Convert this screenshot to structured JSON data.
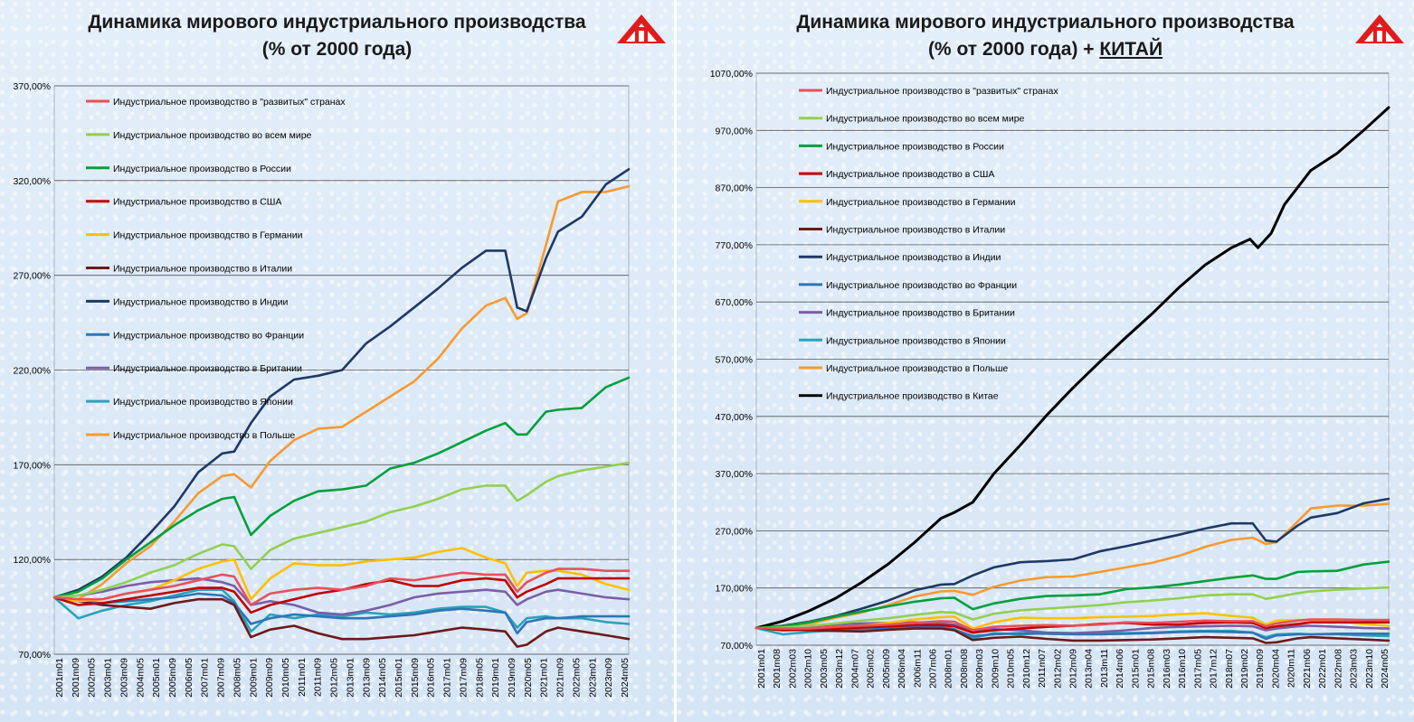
{
  "left": {
    "title_line1": "Динамика мирового индустриального производства",
    "title_line2": "(% от 2000 года)"
  },
  "right": {
    "title_line1": "Динамика мирового индустриального производства",
    "title_line2a": "(% от 2000 года) + ",
    "title_line2b": "КИТАЙ"
  },
  "colors": {
    "developed": "#e8505b",
    "world": "#92d050",
    "russia": "#00a03c",
    "usa": "#c00000",
    "germany": "#ffc000",
    "italy": "#6b1a1a",
    "india": "#1f3864",
    "france": "#2e75b6",
    "britain": "#7b5ea7",
    "japan": "#2aa3b8",
    "poland": "#f79a2e",
    "china": "#000000",
    "logo": "#e11b1b"
  },
  "chart_data": [
    {
      "type": "line",
      "title": "Динамика мирового индустриального производства (% от 2000 года)",
      "ylim": [
        70,
        370
      ],
      "yticks": [
        "70,00%",
        "120,00%",
        "170,00%",
        "220,00%",
        "270,00%",
        "320,00%",
        "370,00%"
      ],
      "ytick_values": [
        70,
        120,
        170,
        220,
        270,
        320,
        370
      ],
      "x_start": 2001.0,
      "x_end": 2024.95,
      "xticks": [
        "2001m01",
        "2001m09",
        "2002m05",
        "2003m01",
        "2003m09",
        "2004m05",
        "2005m01",
        "2005m09",
        "2006m05",
        "2007m01",
        "2007m09",
        "2008m05",
        "2009m01",
        "2009m09",
        "2010m05",
        "2011m01",
        "2011m09",
        "2012m05",
        "2013m01",
        "2013m09",
        "2014m05",
        "2015m01",
        "2015m09",
        "2016m05",
        "2017m01",
        "2017m09",
        "2018m05",
        "2019m01",
        "2019m09",
        "2020m05",
        "2021m01",
        "2021m09",
        "2022m05",
        "2023m01",
        "2023m09",
        "2024m05"
      ],
      "grid": true,
      "legend_position": "upper-left",
      "series": [
        {
          "key": "developed",
          "name": "Индустриальное производство в \"развитых\" странах",
          "x": [
            2001,
            2002,
            2003,
            2004,
            2005,
            2006,
            2007,
            2008,
            2008.5,
            2009.2,
            2010,
            2011,
            2012,
            2013,
            2014,
            2015,
            2016,
            2017,
            2018,
            2019,
            2019.8,
            2020.3,
            2020.7,
            2021.5,
            2022,
            2023,
            2024,
            2024.95
          ],
          "y": [
            100,
            99,
            99,
            102,
            104,
            106,
            109,
            112,
            111,
            96,
            102,
            104,
            105,
            104,
            106,
            110,
            109,
            111,
            113,
            112,
            112,
            103,
            108,
            113,
            115,
            115,
            114,
            114
          ]
        },
        {
          "key": "world",
          "name": "Индустриальное производство во всем мире",
          "x": [
            2001,
            2002,
            2003,
            2004,
            2005,
            2006,
            2007,
            2008,
            2008.5,
            2009.2,
            2010,
            2011,
            2012,
            2013,
            2014,
            2015,
            2016,
            2017,
            2018,
            2019,
            2019.8,
            2020.3,
            2020.7,
            2021.5,
            2022,
            2023,
            2024,
            2024.95
          ],
          "y": [
            100,
            101,
            104,
            108,
            113,
            117,
            123,
            128,
            127,
            115,
            125,
            131,
            134,
            137,
            140,
            145,
            148,
            152,
            157,
            159,
            159,
            151,
            154,
            161,
            164,
            167,
            169,
            171
          ]
        },
        {
          "key": "russia",
          "name": "Индустриальное производство в России",
          "x": [
            2001,
            2002,
            2003,
            2004,
            2005,
            2006,
            2007,
            2008,
            2008.5,
            2009.2,
            2010,
            2011,
            2012,
            2013,
            2014,
            2015,
            2016,
            2017,
            2018,
            2019,
            2019.8,
            2020.3,
            2020.7,
            2021.5,
            2022,
            2023,
            2024,
            2024.95
          ],
          "y": [
            100,
            103,
            110,
            120,
            129,
            138,
            146,
            152,
            153,
            133,
            143,
            151,
            156,
            157,
            159,
            168,
            171,
            176,
            182,
            188,
            192,
            186,
            186,
            198,
            199,
            200,
            211,
            216
          ]
        },
        {
          "key": "usa",
          "name": "Индустриальное производство в США",
          "x": [
            2001,
            2002,
            2003,
            2004,
            2005,
            2006,
            2007,
            2008,
            2008.5,
            2009.2,
            2010,
            2011,
            2012,
            2013,
            2014,
            2015,
            2016,
            2017,
            2018,
            2019,
            2019.8,
            2020.3,
            2020.7,
            2021.5,
            2022,
            2023,
            2024,
            2024.95
          ],
          "y": [
            100,
            96,
            97,
            99,
            101,
            103,
            105,
            105,
            103,
            92,
            96,
            99,
            102,
            104,
            107,
            109,
            106,
            106,
            109,
            110,
            109,
            100,
            103,
            107,
            110,
            110,
            110,
            110
          ]
        },
        {
          "key": "germany",
          "name": "Индустриальное производство в Германии",
          "x": [
            2001,
            2002,
            2003,
            2004,
            2005,
            2006,
            2007,
            2008,
            2008.5,
            2009.2,
            2010,
            2011,
            2012,
            2013,
            2014,
            2015,
            2016,
            2017,
            2018,
            2019,
            2019.8,
            2020.3,
            2020.7,
            2021.5,
            2022,
            2023,
            2024,
            2024.95
          ],
          "y": [
            100,
            98,
            99,
            102,
            104,
            109,
            115,
            119,
            120,
            99,
            110,
            118,
            117,
            117,
            119,
            120,
            121,
            124,
            126,
            121,
            118,
            106,
            113,
            114,
            114,
            112,
            107,
            104
          ]
        },
        {
          "key": "italy",
          "name": "Индустриальное производство в Италии",
          "x": [
            2001,
            2002,
            2003,
            2004,
            2005,
            2006,
            2007,
            2008,
            2008.5,
            2009.2,
            2010,
            2011,
            2012,
            2013,
            2014,
            2015,
            2016,
            2017,
            2018,
            2019,
            2019.8,
            2020.3,
            2020.7,
            2021.5,
            2022,
            2023,
            2024,
            2024.95
          ],
          "y": [
            100,
            98,
            96,
            95,
            94,
            97,
            99,
            99,
            96,
            79,
            83,
            85,
            81,
            78,
            78,
            79,
            80,
            82,
            84,
            83,
            82,
            74,
            75,
            82,
            84,
            82,
            80,
            78
          ]
        },
        {
          "key": "india",
          "name": "Индустриальное производство в Индии",
          "x": [
            2001,
            2002,
            2003,
            2004,
            2005,
            2006,
            2007,
            2008,
            2008.5,
            2009.2,
            2010,
            2011,
            2012,
            2013,
            2014,
            2015,
            2016,
            2017,
            2018,
            2019,
            2019.8,
            2020.3,
            2020.7,
            2021.5,
            2022,
            2023,
            2024,
            2024.95
          ],
          "y": [
            100,
            104,
            111,
            121,
            134,
            148,
            166,
            176,
            177,
            192,
            206,
            215,
            217,
            220,
            234,
            243,
            253,
            263,
            274,
            283,
            283,
            253,
            251,
            279,
            293,
            301,
            318,
            326
          ]
        },
        {
          "key": "france",
          "name": "Индустриальное производство во Франции",
          "x": [
            2001,
            2002,
            2003,
            2004,
            2005,
            2006,
            2007,
            2008,
            2008.5,
            2009.2,
            2010,
            2011,
            2012,
            2013,
            2014,
            2015,
            2016,
            2017,
            2018,
            2019,
            2019.8,
            2020.3,
            2020.7,
            2021.5,
            2022,
            2023,
            2024,
            2024.95
          ],
          "y": [
            100,
            98,
            97,
            98,
            99,
            100,
            102,
            101,
            97,
            86,
            89,
            91,
            90,
            89,
            89,
            90,
            91,
            93,
            94,
            93,
            92,
            81,
            87,
            89,
            89,
            90,
            90,
            90
          ]
        },
        {
          "key": "britain",
          "name": "Индустриальное производство в Британии",
          "x": [
            2001,
            2002,
            2003,
            2004,
            2005,
            2006,
            2007,
            2008,
            2008.5,
            2009.2,
            2010,
            2011,
            2012,
            2013,
            2014,
            2015,
            2016,
            2017,
            2018,
            2019,
            2019.8,
            2020.3,
            2020.7,
            2021.5,
            2022,
            2023,
            2024,
            2024.95
          ],
          "y": [
            100,
            101,
            103,
            106,
            108,
            109,
            110,
            108,
            106,
            96,
            98,
            96,
            92,
            91,
            93,
            96,
            100,
            102,
            103,
            104,
            103,
            96,
            99,
            103,
            104,
            102,
            100,
            99
          ]
        },
        {
          "key": "japan",
          "name": "Индустриальное производство в Японии",
          "x": [
            2001,
            2002,
            2003,
            2004,
            2005,
            2006,
            2007,
            2008,
            2008.5,
            2009.2,
            2010,
            2011,
            2012,
            2013,
            2014,
            2015,
            2016,
            2017,
            2018,
            2019,
            2019.8,
            2020.3,
            2020.7,
            2021.5,
            2022,
            2023,
            2024,
            2024.95
          ],
          "y": [
            100,
            89,
            93,
            96,
            98,
            101,
            104,
            104,
            98,
            82,
            91,
            89,
            91,
            90,
            92,
            91,
            92,
            94,
            95,
            95,
            92,
            84,
            89,
            90,
            89,
            89,
            87,
            86
          ]
        },
        {
          "key": "poland",
          "name": "Индустриальное производство в Польше",
          "x": [
            2001,
            2002,
            2003,
            2004,
            2005,
            2006,
            2007,
            2008,
            2008.5,
            2009.2,
            2010,
            2011,
            2012,
            2013,
            2014,
            2015,
            2016,
            2017,
            2018,
            2019,
            2019.8,
            2020.3,
            2020.7,
            2021.5,
            2022,
            2023,
            2024,
            2024.95
          ],
          "y": [
            100,
            99,
            107,
            118,
            127,
            140,
            155,
            164,
            165,
            158,
            172,
            183,
            189,
            190,
            198,
            206,
            214,
            226,
            242,
            254,
            258,
            247,
            250,
            286,
            309,
            314,
            314,
            317
          ]
        }
      ]
    },
    {
      "type": "line",
      "title": "Динамика мирового индустриального производства (% от 2000 года) + КИТАЙ",
      "ylim": [
        70,
        1070
      ],
      "yticks": [
        "70,00%",
        "170,00%",
        "270,00%",
        "370,00%",
        "470,00%",
        "570,00%",
        "670,00%",
        "770,00%",
        "870,00%",
        "970,00%",
        "1070,00%"
      ],
      "ytick_values": [
        70,
        170,
        270,
        370,
        470,
        570,
        670,
        770,
        870,
        970,
        1070
      ],
      "x_start": 2001.0,
      "x_end": 2024.95,
      "xticks": [
        "2001m01",
        "2001m08",
        "2002m03",
        "2002m10",
        "2003m05",
        "2003m12",
        "2004m07",
        "2005m02",
        "2005m09",
        "2006m04",
        "2006m11",
        "2007m06",
        "2008m01",
        "2008m08",
        "2009m03",
        "2009m10",
        "2010m05",
        "2010m12",
        "2011m07",
        "2012m02",
        "2012m09",
        "2013m04",
        "2013m11",
        "2014m06",
        "2015m01",
        "2015m08",
        "2016m03",
        "2016m10",
        "2017m05",
        "2017m12",
        "2018m07",
        "2019m02",
        "2019m09",
        "2020m04",
        "2020m11",
        "2021m06",
        "2022m01",
        "2022m08",
        "2023m03",
        "2023m10",
        "2024m05"
      ],
      "grid": true,
      "legend_position": "upper-left",
      "series": [
        {
          "key": "developed",
          "name": "Индустриальное производство в \"развитых\" странах",
          "same_as_left": true
        },
        {
          "key": "world",
          "name": "Индустриальное производство во всем мире",
          "same_as_left": true
        },
        {
          "key": "russia",
          "name": "Индустриальное производство в России",
          "same_as_left": true
        },
        {
          "key": "usa",
          "name": "Индустриальное производство в США",
          "same_as_left": true
        },
        {
          "key": "germany",
          "name": "Индустриальное производство в Германии",
          "same_as_left": true
        },
        {
          "key": "italy",
          "name": "Индустриальное производство в Италии",
          "same_as_left": true
        },
        {
          "key": "india",
          "name": "Индустриальное производство в Индии",
          "same_as_left": true
        },
        {
          "key": "france",
          "name": "Индустриальное производство во Франции",
          "same_as_left": true
        },
        {
          "key": "britain",
          "name": "Индустриальное производство в Британии",
          "same_as_left": true
        },
        {
          "key": "japan",
          "name": "Индустриальное производство в Японии",
          "same_as_left": true
        },
        {
          "key": "poland",
          "name": "Индустриальное производство в Польше",
          "same_as_left": true
        },
        {
          "key": "china",
          "name": "Индустриальное производство в Китае",
          "x": [
            2001,
            2002,
            2003,
            2004,
            2005,
            2006,
            2007,
            2008,
            2008.5,
            2009.2,
            2010,
            2011,
            2012,
            2013,
            2014,
            2015,
            2016,
            2017,
            2018,
            2019,
            2019.7,
            2020.0,
            2020.5,
            2021.0,
            2021.5,
            2022,
            2023,
            2024,
            2024.95
          ],
          "y": [
            100,
            112,
            130,
            152,
            180,
            212,
            250,
            292,
            302,
            320,
            370,
            420,
            472,
            520,
            565,
            608,
            650,
            695,
            735,
            765,
            780,
            765,
            790,
            840,
            870,
            900,
            930,
            970,
            1010
          ]
        }
      ]
    }
  ]
}
